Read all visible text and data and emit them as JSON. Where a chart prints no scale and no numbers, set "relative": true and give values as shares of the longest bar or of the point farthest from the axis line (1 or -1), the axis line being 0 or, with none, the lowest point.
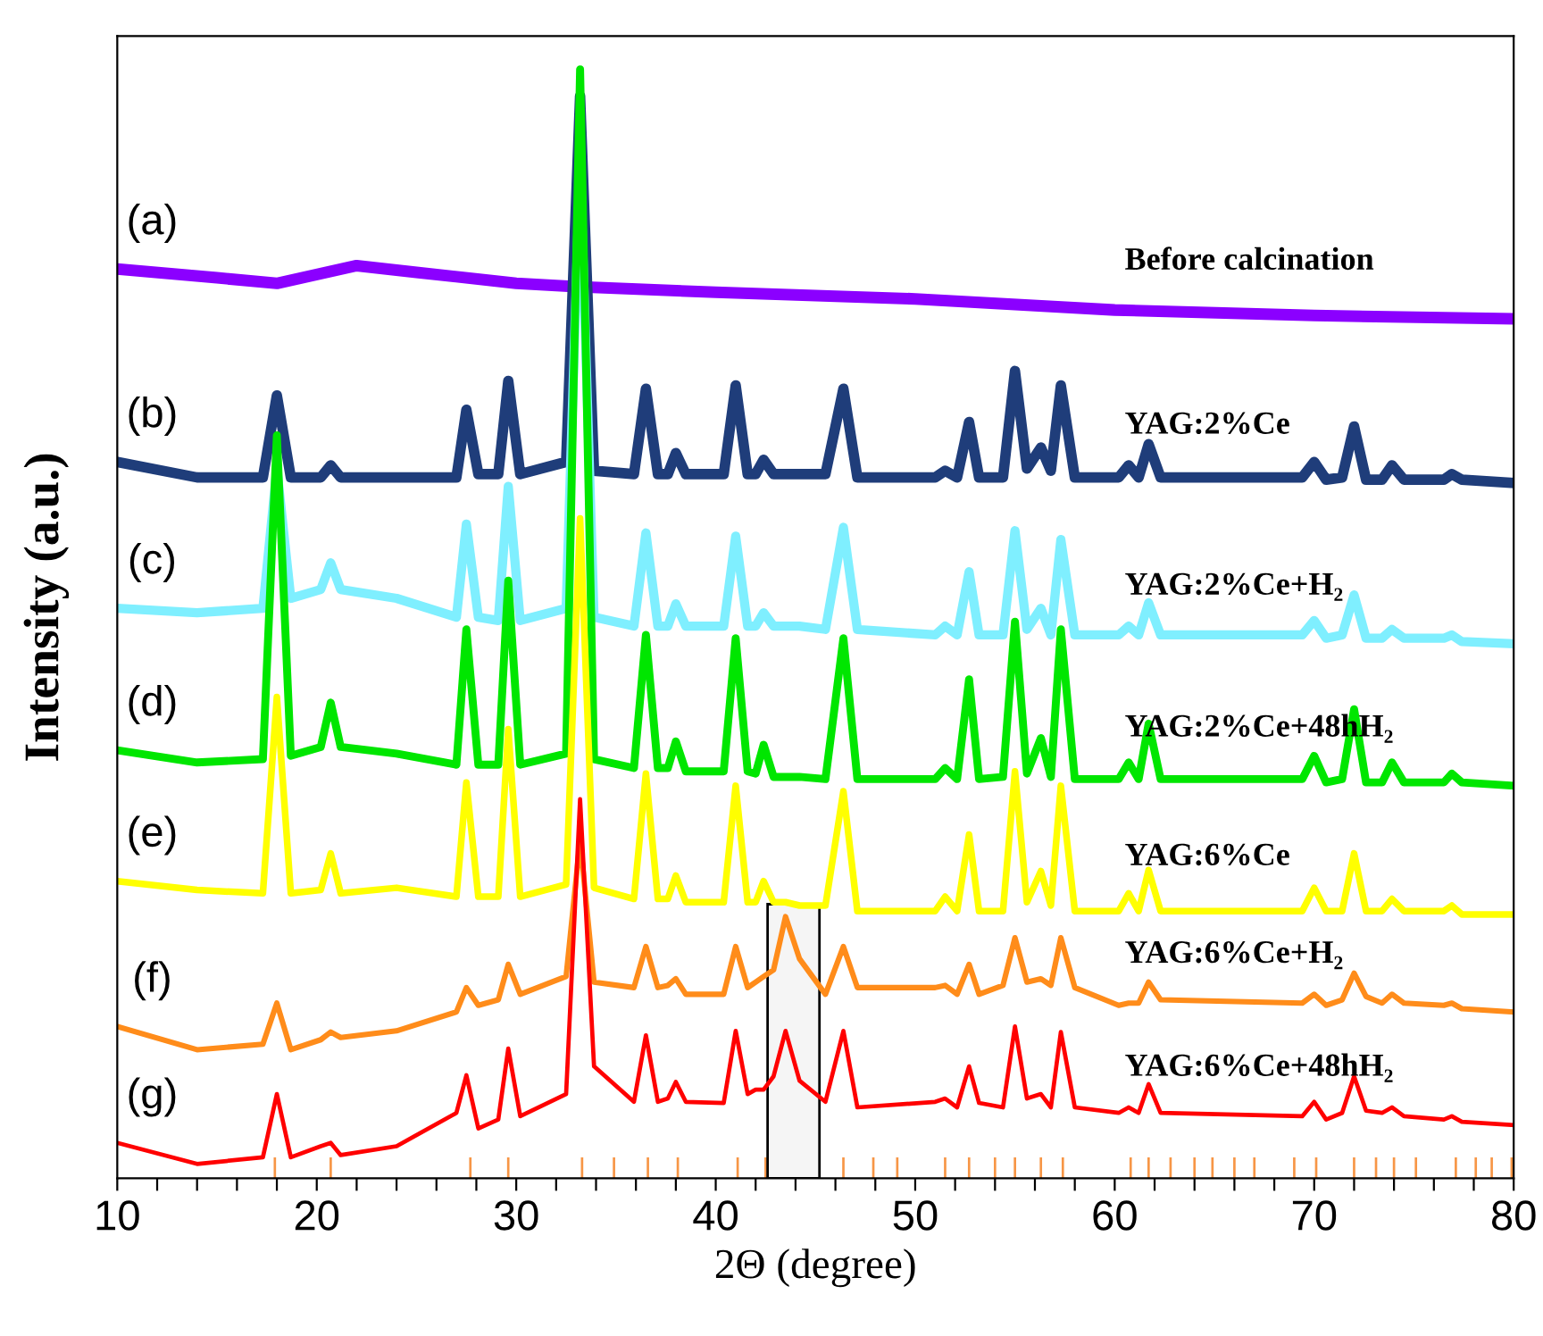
{
  "chart_data": {
    "type": "line",
    "relative": true,
    "xlabel": "2Θ (degree)",
    "ylabel": "Intensity (a.u.)",
    "xlim": [
      10,
      80
    ],
    "xticks": [
      10,
      {
        "value": 12,
        "label": null
      },
      {
        "value": 14,
        "label": null
      },
      {
        "value": 16,
        "label": null
      },
      {
        "value": 18,
        "label": null
      },
      20,
      {
        "value": 22,
        "label": null
      },
      {
        "value": 24,
        "label": null
      },
      {
        "value": 26,
        "label": null
      },
      {
        "value": 28,
        "label": null
      },
      30,
      {
        "value": 32,
        "label": null
      },
      {
        "value": 34,
        "label": null
      },
      {
        "value": 36,
        "label": null
      },
      {
        "value": 38,
        "label": null
      },
      40,
      {
        "value": 42,
        "label": null
      },
      {
        "value": 44,
        "label": null
      },
      {
        "value": 46,
        "label": null
      },
      {
        "value": 48,
        "label": null
      },
      50,
      {
        "value": 52,
        "label": null
      },
      {
        "value": 54,
        "label": null
      },
      {
        "value": 56,
        "label": null
      },
      {
        "value": 58,
        "label": null
      },
      60,
      {
        "value": 62,
        "label": null
      },
      {
        "value": 64,
        "label": null
      },
      {
        "value": 66,
        "label": null
      },
      {
        "value": 68,
        "label": null
      },
      70,
      {
        "value": 72,
        "label": null
      },
      {
        "value": 74,
        "label": null
      },
      {
        "value": 76,
        "label": null
      },
      {
        "value": 78,
        "label": null
      },
      80
    ],
    "x": [
      10,
      14,
      17.3,
      18.0,
      18.7,
      20.2,
      20.7,
      21.2,
      24,
      27.0,
      27.5,
      28.1,
      29.1,
      29.6,
      30.2,
      32.5,
      33.2,
      33.9,
      35.9,
      36.5,
      37.1,
      37.6,
      38.0,
      38.5,
      40.4,
      41.0,
      41.6,
      42.0,
      42.4,
      42.9,
      43.5,
      44.2,
      45.5,
      46.4,
      47.1,
      51,
      51.5,
      52.1,
      52.7,
      53.2,
      54.4,
      55.0,
      55.6,
      56.3,
      56.8,
      57.3,
      58.0,
      60.2,
      60.7,
      61.2,
      61.7,
      62.3,
      69.4,
      70.0,
      70.6,
      71.4,
      72.0,
      72.6,
      73.4,
      73.9,
      74.5,
      76.5,
      76.9,
      77.4,
      80
    ],
    "series": [
      {
        "name": "Before calcination",
        "color": "#8b00ff",
        "x": [
          10,
          15,
          18,
          22,
          25,
          30,
          33,
          40,
          50,
          60,
          70,
          80
        ],
        "values": [
          0.82,
          0.812,
          0.807,
          0.823,
          0.817,
          0.807,
          0.804,
          0.799,
          0.793,
          0.783,
          0.778,
          0.775
        ]
      },
      {
        "name": "YAG:2%Ce",
        "color": "#1f3d7a",
        "values": [
          0.646,
          0.632,
          0.632,
          0.706,
          0.632,
          0.632,
          0.643,
          0.632,
          0.632,
          0.632,
          0.693,
          0.635,
          0.635,
          0.719,
          0.635,
          0.646,
          0.976,
          0.638,
          0.635,
          0.712,
          0.635,
          0.635,
          0.654,
          0.635,
          0.635,
          0.715,
          0.635,
          0.635,
          0.648,
          0.635,
          0.635,
          0.635,
          0.635,
          0.712,
          0.632,
          0.632,
          0.638,
          0.632,
          0.682,
          0.632,
          0.632,
          0.728,
          0.64,
          0.659,
          0.638,
          0.715,
          0.632,
          0.632,
          0.643,
          0.632,
          0.662,
          0.632,
          0.632,
          0.646,
          0.63,
          0.632,
          0.678,
          0.63,
          0.63,
          0.643,
          0.63,
          0.63,
          0.635,
          0.63,
          0.627
        ]
      },
      {
        "name": "YAG:2%Ce+H₂",
        "color": "#7fefff",
        "values": [
          0.514,
          0.51,
          0.514,
          0.64,
          0.523,
          0.531,
          0.555,
          0.531,
          0.523,
          0.506,
          0.59,
          0.506,
          0.503,
          0.624,
          0.503,
          0.514,
          0.916,
          0.506,
          0.498,
          0.582,
          0.498,
          0.498,
          0.518,
          0.498,
          0.498,
          0.579,
          0.498,
          0.498,
          0.51,
          0.498,
          0.498,
          0.498,
          0.495,
          0.587,
          0.495,
          0.49,
          0.498,
          0.49,
          0.547,
          0.49,
          0.49,
          0.584,
          0.495,
          0.514,
          0.49,
          0.576,
          0.49,
          0.49,
          0.498,
          0.49,
          0.519,
          0.49,
          0.49,
          0.503,
          0.487,
          0.49,
          0.526,
          0.487,
          0.487,
          0.495,
          0.487,
          0.487,
          0.49,
          0.484,
          0.482
        ]
      },
      {
        "name": "YAG:2%Ce+48hH₂",
        "color": "#00e600",
        "values": [
          0.386,
          0.375,
          0.378,
          0.67,
          0.381,
          0.389,
          0.429,
          0.389,
          0.383,
          0.373,
          0.495,
          0.373,
          0.373,
          0.539,
          0.373,
          0.383,
          1.0,
          0.378,
          0.37,
          0.49,
          0.37,
          0.37,
          0.394,
          0.367,
          0.367,
          0.487,
          0.367,
          0.365,
          0.391,
          0.362,
          0.362,
          0.362,
          0.36,
          0.487,
          0.36,
          0.36,
          0.37,
          0.36,
          0.45,
          0.36,
          0.362,
          0.502,
          0.365,
          0.397,
          0.362,
          0.495,
          0.36,
          0.36,
          0.375,
          0.36,
          0.41,
          0.36,
          0.36,
          0.381,
          0.357,
          0.36,
          0.423,
          0.357,
          0.357,
          0.375,
          0.357,
          0.357,
          0.365,
          0.357,
          0.354
        ]
      },
      {
        "name": "YAG:6%Ce",
        "color": "#ffff00",
        "values": [
          0.268,
          0.26,
          0.257,
          0.434,
          0.257,
          0.26,
          0.293,
          0.257,
          0.262,
          0.254,
          0.357,
          0.254,
          0.254,
          0.405,
          0.254,
          0.265,
          0.595,
          0.262,
          0.252,
          0.365,
          0.252,
          0.252,
          0.273,
          0.249,
          0.249,
          0.354,
          0.249,
          0.249,
          0.268,
          0.249,
          0.249,
          0.246,
          0.246,
          0.349,
          0.241,
          0.241,
          0.254,
          0.241,
          0.31,
          0.241,
          0.241,
          0.367,
          0.249,
          0.277,
          0.246,
          0.354,
          0.241,
          0.241,
          0.257,
          0.241,
          0.278,
          0.241,
          0.241,
          0.262,
          0.241,
          0.241,
          0.293,
          0.241,
          0.241,
          0.252,
          0.241,
          0.241,
          0.246,
          0.238,
          0.238
        ]
      },
      {
        "name": "YAG:6%Ce+H₂",
        "color": "#ff8c1a",
        "values": [
          0.137,
          0.116,
          0.121,
          0.158,
          0.116,
          0.125,
          0.132,
          0.127,
          0.133,
          0.15,
          0.172,
          0.156,
          0.161,
          0.193,
          0.166,
          0.182,
          0.305,
          0.177,
          0.172,
          0.209,
          0.172,
          0.174,
          0.18,
          0.166,
          0.166,
          0.209,
          0.172,
          0.177,
          0.182,
          0.188,
          0.236,
          0.198,
          0.166,
          0.209,
          0.172,
          0.172,
          0.174,
          0.166,
          0.193,
          0.166,
          0.174,
          0.217,
          0.177,
          0.18,
          0.174,
          0.217,
          0.172,
          0.156,
          0.158,
          0.158,
          0.177,
          0.161,
          0.158,
          0.166,
          0.156,
          0.161,
          0.185,
          0.164,
          0.158,
          0.166,
          0.158,
          0.156,
          0.158,
          0.153,
          0.15
        ]
      },
      {
        "name": "YAG:6%Ce+48hH₂",
        "color": "#ff0000",
        "values": [
          0.032,
          0.013,
          0.019,
          0.076,
          0.019,
          0.029,
          0.032,
          0.021,
          0.029,
          0.059,
          0.093,
          0.045,
          0.053,
          0.117,
          0.056,
          0.076,
          0.342,
          0.101,
          0.069,
          0.129,
          0.069,
          0.072,
          0.087,
          0.069,
          0.068,
          0.133,
          0.076,
          0.08,
          0.08,
          0.092,
          0.133,
          0.088,
          0.069,
          0.133,
          0.064,
          0.069,
          0.072,
          0.064,
          0.101,
          0.068,
          0.064,
          0.137,
          0.072,
          0.076,
          0.064,
          0.132,
          0.064,
          0.059,
          0.064,
          0.059,
          0.085,
          0.059,
          0.056,
          0.069,
          0.053,
          0.059,
          0.092,
          0.061,
          0.059,
          0.064,
          0.056,
          0.053,
          0.056,
          0.051,
          0.048
        ]
      },
      {
        "type": "bar",
        "color": "#f79646",
        "x": [
          17.9,
          20.7,
          27.7,
          29.6,
          33.3,
          34.9,
          36.6,
          38.1,
          41.1,
          42.5,
          46.4,
          47.9,
          49.1,
          51.5,
          52.7,
          54.0,
          55.0,
          56.3,
          57.4,
          60.8,
          61.7,
          62.8,
          64.0,
          64.9,
          66.0,
          67.0,
          69.0,
          70.1,
          72.0,
          73.1,
          74.0,
          75.1,
          77.1,
          78.1,
          78.9,
          79.9
        ],
        "values": [
          0.019,
          0.019,
          0.019,
          0.019,
          0.019,
          0.019,
          0.019,
          0.019,
          0.019,
          0.019,
          0.019,
          0.019,
          0.019,
          0.019,
          0.019,
          0.019,
          0.019,
          0.019,
          0.019,
          0.019,
          0.019,
          0.019,
          0.019,
          0.019,
          0.019,
          0.019,
          0.019,
          0.019,
          0.019,
          0.019,
          0.019,
          0.019,
          0.019,
          0.019,
          0.019,
          0.019
        ]
      }
    ],
    "annotations": [
      "(a)",
      "(b)",
      "(c)",
      "(d)",
      "(e)",
      "(f)",
      "(g)"
    ],
    "bands": [
      {
        "axis": "x",
        "from": 42.6,
        "to": 45.2,
        "color": "#000000"
      }
    ]
  }
}
